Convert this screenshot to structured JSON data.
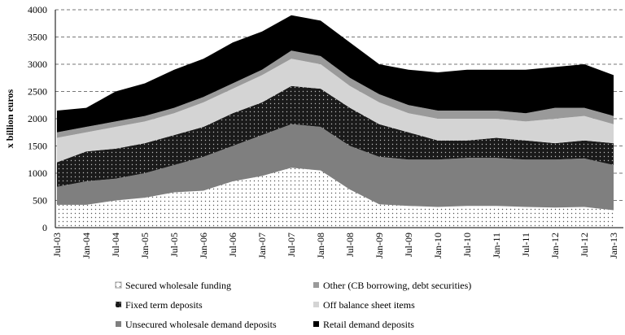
{
  "chart_data": {
    "type": "stacked_area",
    "y_label": "x billion euros",
    "categories": [
      "Jul-03",
      "Jan-04",
      "Jul-04",
      "Jan-05",
      "Jul-05",
      "Jan-06",
      "Jul-06",
      "Jan-07",
      "Jul-07",
      "Jan-08",
      "Jul-08",
      "Jan-09",
      "Jul-09",
      "Jan-10",
      "Jul-10",
      "Jan-11",
      "Jul-11",
      "Jan-12",
      "Jul-12",
      "Jan-13"
    ],
    "ylim": [
      0,
      4000
    ],
    "yticks": [
      0,
      500,
      1000,
      1500,
      2000,
      2500,
      3000,
      3500,
      4000
    ],
    "grid": true,
    "stack_order": [
      0,
      4,
      2,
      3,
      1,
      5
    ],
    "series": [
      {
        "name": "Secured wholesale funding",
        "color": "#ffffff",
        "pattern": "dots",
        "values": [
          420,
          420,
          500,
          550,
          650,
          680,
          850,
          950,
          1100,
          1050,
          700,
          430,
          400,
          380,
          400,
          400,
          380,
          370,
          380,
          320
        ]
      },
      {
        "name": "Other (CB borrowing, debt securities)",
        "color": "#9a9a9a",
        "values": [
          100,
          100,
          100,
          100,
          100,
          100,
          100,
          100,
          150,
          150,
          150,
          150,
          150,
          150,
          150,
          150,
          150,
          200,
          150,
          150
        ]
      },
      {
        "name": "Fixed term deposits",
        "color": "#1a1a1a",
        "pattern": "dots",
        "values": [
          450,
          550,
          550,
          550,
          550,
          550,
          600,
          600,
          700,
          700,
          700,
          600,
          500,
          350,
          320,
          370,
          350,
          300,
          330,
          400
        ]
      },
      {
        "name": "Off balance sheet items",
        "color": "#d4d4d4",
        "values": [
          450,
          350,
          400,
          400,
          400,
          450,
          450,
          500,
          500,
          450,
          400,
          400,
          350,
          400,
          400,
          350,
          350,
          450,
          450,
          350
        ]
      },
      {
        "name": "Unsecured wholesale demand deposits",
        "color": "#7f7f7f",
        "values": [
          330,
          430,
          400,
          450,
          500,
          620,
          650,
          750,
          800,
          800,
          800,
          870,
          850,
          870,
          880,
          880,
          870,
          880,
          890,
          830
        ]
      },
      {
        "name": "Retail demand deposits",
        "color": "#000000",
        "values": [
          400,
          350,
          550,
          600,
          700,
          700,
          750,
          700,
          650,
          650,
          650,
          550,
          650,
          700,
          750,
          750,
          800,
          750,
          800,
          750
        ]
      }
    ]
  }
}
